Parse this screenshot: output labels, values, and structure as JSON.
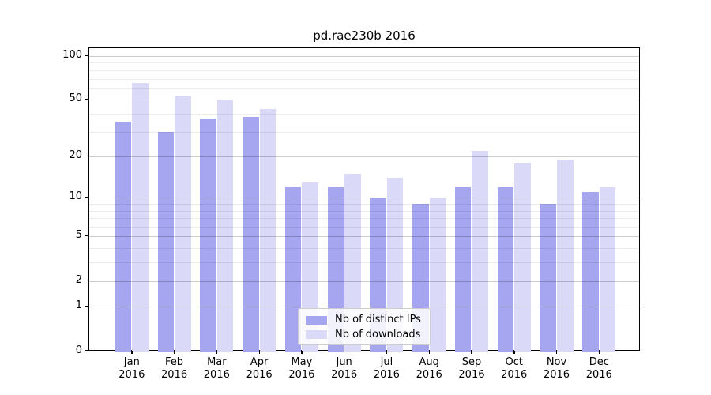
{
  "title": "pd.rae230b 2016",
  "legend": {
    "items": [
      {
        "label": "Nb of distinct IPs",
        "series_key": "ip"
      },
      {
        "label": "Nb of downloads",
        "series_key": "dl"
      }
    ]
  },
  "chart_data": {
    "type": "bar",
    "title": "pd.rae230b 2016",
    "categories": [
      "Jan",
      "Feb",
      "Mar",
      "Apr",
      "May",
      "Jun",
      "Jul",
      "Aug",
      "Sep",
      "Oct",
      "Nov",
      "Dec"
    ],
    "category_year": "2016",
    "series": [
      {
        "name": "Nb of distinct IPs",
        "color": "#a6a6f0",
        "values": [
          35,
          30,
          37,
          38,
          12,
          12,
          10,
          9,
          12,
          12,
          9,
          11
        ]
      },
      {
        "name": "Nb of downloads",
        "color": "#dadaf8",
        "values": [
          65,
          53,
          50,
          43,
          13,
          15,
          14,
          10,
          22,
          18,
          19,
          12
        ]
      }
    ],
    "ylim": [
      0,
      100
    ],
    "y_scale": "log10(value+1)",
    "y_ticks": [
      100,
      50,
      20,
      10,
      5,
      2,
      1,
      0
    ],
    "y_minor_gridlines": [
      90,
      80,
      70,
      60,
      40,
      30,
      9,
      8,
      7,
      6,
      4,
      3
    ],
    "xlabel": "",
    "ylabel": "",
    "grid": true,
    "legend_position": "lower center"
  }
}
